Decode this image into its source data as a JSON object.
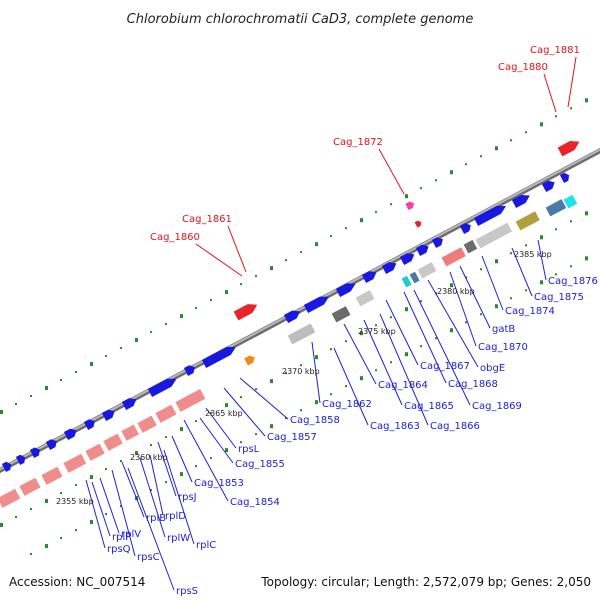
{
  "title": "Chlorobium chlorochromatii CaD3, complete genome",
  "accession": "Accession: NC_007514",
  "summary": "Topology: circular; Length: 2,572,079 bp; Genes: 2,050",
  "ticks": [
    "2355 kbp",
    "2360 kbp",
    "2365 kbp",
    "2370 kbp",
    "2375 kbp",
    "2380 kbp",
    "2385 kbp"
  ],
  "upper_labels": [
    "Cag_1860",
    "Cag_1861",
    "Cag_1872",
    "Cag_1880",
    "Cag_1881"
  ],
  "lower_labels": [
    "rpsS",
    "rpsC",
    "rpsQ",
    "rplV",
    "rplP",
    "rplB",
    "rplW",
    "rplD",
    "rplC",
    "rpsJ",
    "Cag_1853",
    "Cag_1854",
    "Cag_1855",
    "rpsL",
    "Cag_1857",
    "Cag_1858",
    "Cag_1862",
    "Cag_1863",
    "Cag_1864",
    "Cag_1865",
    "Cag_1866",
    "Cag_1867",
    "Cag_1868",
    "Cag_1869",
    "obgE",
    "Cag_1870",
    "gatB",
    "Cag_1874",
    "Cag_1875",
    "Cag_1876"
  ],
  "colors": {
    "backbone": "#8c8c8c",
    "cds": "#1818e0",
    "rna": "#e8242a",
    "rrna": "#f08c8c",
    "dot": "#2a8a2a"
  }
}
